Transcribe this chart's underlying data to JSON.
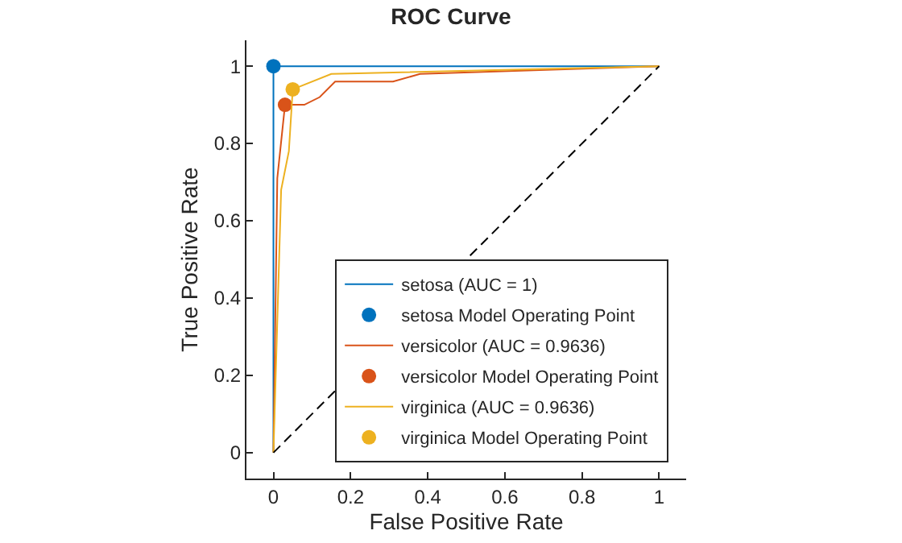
{
  "chart_data": {
    "type": "line",
    "title": "ROC Curve",
    "xlabel": "False Positive Rate",
    "ylabel": "True Positive Rate",
    "series": [
      {
        "name": "setosa (AUC = 1)",
        "color": "#0072bd",
        "x": [
          0,
          0,
          1
        ],
        "values": [
          0,
          1,
          1
        ]
      },
      {
        "name": "setosa Model Operating Point",
        "type": "scatter",
        "marker": "circle",
        "color": "#0072bd",
        "x": [
          0
        ],
        "values": [
          1
        ]
      },
      {
        "name": "versicolor (AUC = 0.9636)",
        "color": "#d95319",
        "x": [
          0,
          0.01,
          0.03,
          0.08,
          0.12,
          0.16,
          0.31,
          0.38,
          1
        ],
        "values": [
          0,
          0.71,
          0.9,
          0.9,
          0.92,
          0.96,
          0.96,
          0.98,
          1
        ]
      },
      {
        "name": "versicolor Model Operating Point",
        "type": "scatter",
        "marker": "circle",
        "color": "#d95319",
        "x": [
          0.03
        ],
        "values": [
          0.9
        ]
      },
      {
        "name": "virginica (AUC = 0.9636)",
        "color": "#edb120",
        "x": [
          0,
          0.02,
          0.04,
          0.05,
          0.15,
          1
        ],
        "values": [
          0,
          0.68,
          0.78,
          0.94,
          0.98,
          1
        ]
      },
      {
        "name": "virginica Model Operating Point",
        "type": "scatter",
        "marker": "circle",
        "color": "#edb120",
        "x": [
          0.05
        ],
        "values": [
          0.94
        ]
      },
      {
        "line_style": "dashed",
        "color": "#000000",
        "x": [
          0,
          1
        ],
        "values": [
          0,
          1
        ]
      }
    ],
    "xlim": [
      -0.07,
      1.07
    ],
    "ylim": [
      -0.067,
      1.067
    ],
    "xticks": [
      0,
      0.2,
      0.4,
      0.6,
      0.8,
      1
    ],
    "yticks": [
      0,
      0.2,
      0.4,
      0.6,
      0.8,
      1
    ],
    "legend": "bottom right"
  }
}
